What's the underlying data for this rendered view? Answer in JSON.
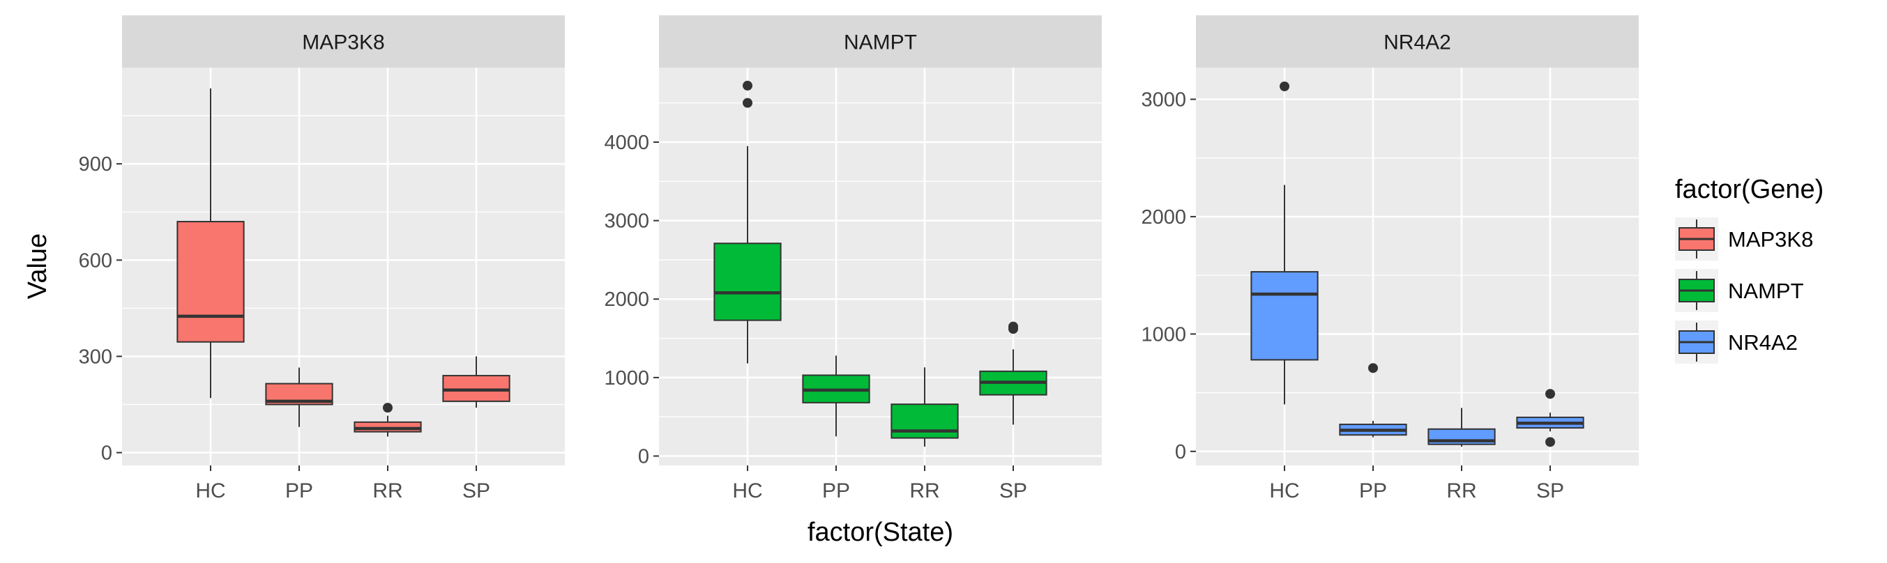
{
  "chart_data": {
    "type": "box",
    "facet_by": "factor(Gene)",
    "xlabel": "factor(State)",
    "ylabel": "Value",
    "grid": true,
    "legend": {
      "title": "factor(Gene)",
      "placement": "right",
      "entries": [
        {
          "label": "MAP3K8",
          "color": "#F8766D"
        },
        {
          "label": "NAMPT",
          "color": "#00BA38"
        },
        {
          "label": "NR4A2",
          "color": "#619CFF"
        }
      ]
    },
    "panels": [
      {
        "strip": "MAP3K8",
        "fill": "#F8766D",
        "categories": [
          "HC",
          "PP",
          "RR",
          "SP"
        ],
        "ylim": [
          -40,
          1200
        ],
        "yticks": [
          0,
          300,
          600,
          900
        ],
        "ytick_labels": [
          "0",
          "300",
          "600",
          "900"
        ],
        "boxes": [
          {
            "category": "HC",
            "whisker_low": 170,
            "q1": 345,
            "median": 425,
            "q3": 720,
            "whisker_high": 1135,
            "outliers": []
          },
          {
            "category": "PP",
            "whisker_low": 80,
            "q1": 150,
            "median": 160,
            "q3": 215,
            "whisker_high": 265,
            "outliers": []
          },
          {
            "category": "RR",
            "whisker_low": 50,
            "q1": 65,
            "median": 75,
            "q3": 95,
            "whisker_high": 115,
            "outliers": [
              140
            ]
          },
          {
            "category": "SP",
            "whisker_low": 140,
            "q1": 160,
            "median": 195,
            "q3": 240,
            "whisker_high": 300,
            "outliers": []
          }
        ]
      },
      {
        "strip": "NAMPT",
        "fill": "#00BA38",
        "categories": [
          "HC",
          "PP",
          "RR",
          "SP"
        ],
        "ylim": [
          -120,
          4950
        ],
        "yticks": [
          0,
          1000,
          2000,
          3000,
          4000
        ],
        "ytick_labels": [
          "0",
          "1000",
          "2000",
          "3000",
          "4000"
        ],
        "boxes": [
          {
            "category": "HC",
            "whisker_low": 1180,
            "q1": 1730,
            "median": 2080,
            "q3": 2710,
            "whisker_high": 3950,
            "outliers": [
              4500,
              4720
            ]
          },
          {
            "category": "PP",
            "whisker_low": 250,
            "q1": 680,
            "median": 840,
            "q3": 1030,
            "whisker_high": 1280,
            "outliers": []
          },
          {
            "category": "RR",
            "whisker_low": 120,
            "q1": 230,
            "median": 320,
            "q3": 660,
            "whisker_high": 1130,
            "outliers": []
          },
          {
            "category": "SP",
            "whisker_low": 400,
            "q1": 780,
            "median": 940,
            "q3": 1080,
            "whisker_high": 1360,
            "outliers": [
              1620,
              1650
            ]
          }
        ]
      },
      {
        "strip": "NR4A2",
        "fill": "#619CFF",
        "categories": [
          "HC",
          "PP",
          "RR",
          "SP"
        ],
        "ylim": [
          -120,
          3270
        ],
        "yticks": [
          0,
          1000,
          2000,
          3000
        ],
        "ytick_labels": [
          "0",
          "1000",
          "2000",
          "3000"
        ],
        "boxes": [
          {
            "category": "HC",
            "whisker_low": 400,
            "q1": 780,
            "median": 1340,
            "q3": 1530,
            "whisker_high": 2270,
            "outliers": [
              3110
            ]
          },
          {
            "category": "PP",
            "whisker_low": 120,
            "q1": 140,
            "median": 180,
            "q3": 230,
            "whisker_high": 260,
            "outliers": [
              710
            ]
          },
          {
            "category": "RR",
            "whisker_low": 40,
            "q1": 60,
            "median": 90,
            "q3": 190,
            "whisker_high": 370,
            "outliers": []
          },
          {
            "category": "SP",
            "whisker_low": 170,
            "q1": 200,
            "median": 240,
            "q3": 290,
            "whisker_high": 330,
            "outliers": [
              80,
              490
            ]
          }
        ]
      }
    ]
  }
}
